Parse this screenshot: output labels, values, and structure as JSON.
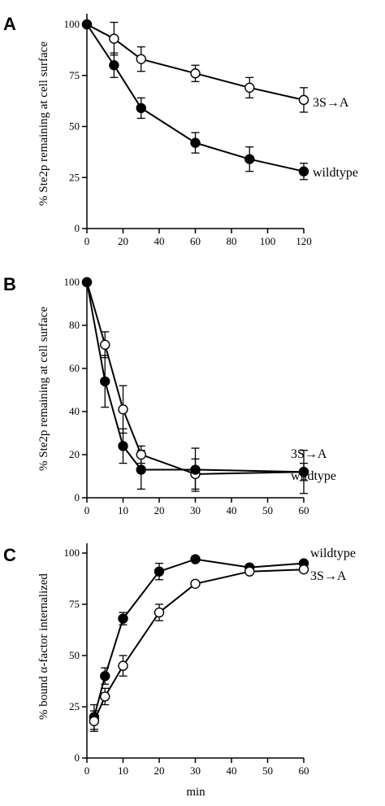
{
  "chart_data": [
    {
      "type": "line",
      "panel_letter": "A",
      "ylabel": "% Ste2p remaining at cell surface",
      "xlabel": "",
      "xlim": [
        0,
        120
      ],
      "ylim": [
        0,
        100
      ],
      "xticks": [
        0,
        20,
        40,
        60,
        80,
        100,
        120
      ],
      "yticks": [
        0,
        25,
        50,
        75,
        100
      ],
      "series": [
        {
          "name": "3S→A",
          "marker": "open-circle",
          "x": [
            0,
            15,
            30,
            60,
            90,
            120
          ],
          "y": [
            100,
            93,
            83,
            76,
            69,
            63
          ],
          "err": [
            0,
            8,
            6,
            4,
            5,
            6
          ]
        },
        {
          "name": "wildtype",
          "marker": "filled-circle",
          "x": [
            0,
            15,
            30,
            60,
            90,
            120
          ],
          "y": [
            100,
            80,
            59,
            42,
            34,
            28
          ],
          "err": [
            0,
            6,
            5,
            5,
            6,
            4
          ]
        }
      ]
    },
    {
      "type": "line",
      "panel_letter": "B",
      "ylabel": "% Ste2p remaining at cell surface",
      "xlabel": "",
      "xlim": [
        0,
        60
      ],
      "ylim": [
        0,
        100
      ],
      "xticks": [
        0,
        10,
        20,
        30,
        40,
        50,
        60
      ],
      "yticks": [
        0,
        20,
        40,
        60,
        80,
        100
      ],
      "series": [
        {
          "name": "3S→A",
          "marker": "open-circle",
          "x": [
            0,
            5,
            10,
            15,
            30,
            60
          ],
          "y": [
            100,
            71,
            41,
            20,
            11,
            12
          ],
          "err": [
            0,
            6,
            11,
            4,
            7,
            10
          ]
        },
        {
          "name": "wildtype",
          "marker": "filled-circle",
          "x": [
            0,
            5,
            10,
            15,
            30,
            60
          ],
          "y": [
            100,
            54,
            24,
            13,
            13,
            12
          ],
          "err": [
            0,
            12,
            8,
            9,
            10,
            4
          ]
        }
      ]
    },
    {
      "type": "line",
      "panel_letter": "C",
      "ylabel": "% bound α-factor internalized",
      "xlabel": "min",
      "xlim": [
        0,
        60
      ],
      "ylim": [
        0,
        100
      ],
      "xticks": [
        0,
        10,
        20,
        30,
        40,
        50,
        60
      ],
      "yticks": [
        0,
        25,
        50,
        75,
        100
      ],
      "series": [
        {
          "name": "wildtype",
          "marker": "filled-circle",
          "x": [
            2,
            5,
            10,
            20,
            30,
            45,
            60
          ],
          "y": [
            20,
            40,
            68,
            91,
            97,
            93,
            95
          ],
          "err": [
            6,
            4,
            3,
            4,
            0,
            0,
            0
          ]
        },
        {
          "name": "3S→A",
          "marker": "open-circle",
          "x": [
            2,
            5,
            10,
            20,
            30,
            45,
            60
          ],
          "y": [
            18,
            30,
            45,
            71,
            85,
            91,
            92
          ],
          "err": [
            5,
            4,
            5,
            4,
            0,
            0,
            0
          ]
        }
      ]
    }
  ]
}
